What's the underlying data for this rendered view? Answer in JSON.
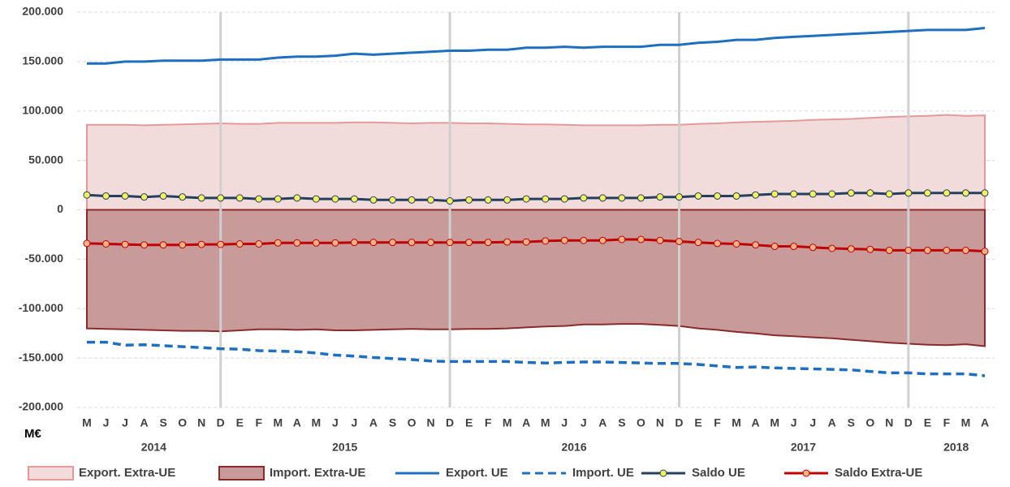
{
  "chart_data": {
    "type": "line",
    "unit_label": "M€",
    "categories": [
      "M",
      "J",
      "J",
      "A",
      "S",
      "O",
      "N",
      "D",
      "E",
      "F",
      "M",
      "A",
      "M",
      "J",
      "J",
      "A",
      "S",
      "O",
      "N",
      "D",
      "E",
      "F",
      "M",
      "A",
      "M",
      "J",
      "J",
      "A",
      "S",
      "O",
      "N",
      "D",
      "E",
      "F",
      "M",
      "A",
      "M",
      "J",
      "J",
      "A",
      "S",
      "O",
      "N",
      "D",
      "E",
      "F",
      "M",
      "A"
    ],
    "years": [
      "2014",
      "2015",
      "2016",
      "2017",
      "2018"
    ],
    "ylim": [
      -200000,
      200000
    ],
    "yticks": [
      {
        "value": -200000,
        "label": "-200.000"
      },
      {
        "value": -150000,
        "label": "-150.000"
      },
      {
        "value": -100000,
        "label": "-100.000"
      },
      {
        "value": -50000,
        "label": "-50.000"
      },
      0,
      {
        "value": 50000,
        "label": "50.000"
      },
      {
        "value": 100000,
        "label": "100.000"
      },
      {
        "value": 150000,
        "label": "150.000"
      },
      {
        "value": 200000,
        "label": "200.000"
      }
    ],
    "grid": true,
    "legend": "bottom",
    "series": [
      {
        "name": "Export. Extra-UE",
        "style": "area",
        "color": "#f2dcdb",
        "edge_color": "#e39a9a",
        "values": [
          86000,
          86000,
          86000,
          85500,
          86000,
          86500,
          87000,
          87500,
          87000,
          87000,
          88000,
          88000,
          88000,
          88000,
          88500,
          88500,
          88000,
          87500,
          88000,
          88000,
          87500,
          87500,
          87000,
          86500,
          86500,
          86000,
          85500,
          85500,
          85500,
          85500,
          86000,
          86000,
          87000,
          87500,
          88500,
          89000,
          89500,
          90000,
          91000,
          91500,
          92000,
          93000,
          94000,
          94500,
          95000,
          96000,
          95000,
          95500
        ]
      },
      {
        "name": "Import. Extra-UE",
        "style": "area",
        "color": "#c89a9a",
        "edge_color": "#8b2a2a",
        "values": [
          -120000,
          -120500,
          -121000,
          -121500,
          -122000,
          -122500,
          -122500,
          -123000,
          -122000,
          -121000,
          -121000,
          -121500,
          -121000,
          -122000,
          -122000,
          -121500,
          -121000,
          -120500,
          -121000,
          -121000,
          -120500,
          -120500,
          -120000,
          -119000,
          -118000,
          -117500,
          -116000,
          -116000,
          -115500,
          -115500,
          -116500,
          -117500,
          -120000,
          -121500,
          -123500,
          -125000,
          -127000,
          -128000,
          -129000,
          -130000,
          -131500,
          -133000,
          -134500,
          -135500,
          -136500,
          -137000,
          -136000,
          -138000
        ]
      },
      {
        "name": "Export. UE",
        "style": "line",
        "color": "#1f6fc0",
        "values": [
          148000,
          148000,
          150000,
          150000,
          151000,
          151000,
          151000,
          152000,
          152000,
          152000,
          154000,
          155000,
          155000,
          156000,
          158000,
          157000,
          158000,
          159000,
          160000,
          161000,
          161000,
          162000,
          162000,
          164000,
          164000,
          165000,
          164000,
          165000,
          165000,
          165000,
          167000,
          167000,
          169000,
          170000,
          172000,
          172000,
          174000,
          175000,
          176000,
          177000,
          178000,
          179000,
          180000,
          181000,
          182000,
          182000,
          182000,
          184000
        ]
      },
      {
        "name": "Import. UE",
        "style": "dashed",
        "color": "#1f6fc0",
        "values": [
          -134000,
          -134000,
          -137000,
          -136500,
          -137500,
          -138500,
          -139500,
          -140500,
          -141000,
          -142500,
          -143000,
          -143500,
          -145000,
          -147000,
          -148000,
          -149500,
          -150500,
          -151500,
          -153000,
          -153500,
          -153500,
          -153500,
          -153500,
          -154500,
          -155000,
          -154500,
          -154000,
          -154000,
          -154500,
          -155000,
          -155500,
          -155500,
          -156500,
          -158000,
          -159500,
          -159000,
          -160000,
          -160500,
          -161000,
          -161500,
          -162000,
          -163500,
          -165000,
          -165000,
          -166000,
          -166000,
          -166000,
          -168000
        ]
      },
      {
        "name": "Saldo UE",
        "style": "line-markers",
        "color": "#243f60",
        "marker_color": "#f2f25a",
        "values": [
          15000,
          14000,
          14000,
          13000,
          14000,
          13000,
          12000,
          12000,
          12000,
          11000,
          11000,
          12000,
          11000,
          11000,
          11000,
          10000,
          10000,
          10000,
          10000,
          9000,
          10000,
          10000,
          10000,
          11000,
          11000,
          11000,
          12000,
          12000,
          12000,
          12000,
          13000,
          13000,
          14000,
          14000,
          14000,
          15000,
          16000,
          16000,
          16000,
          16000,
          17000,
          17000,
          16000,
          17000,
          17000,
          17000,
          17000,
          17000
        ]
      },
      {
        "name": "Saldo Extra-UE",
        "style": "line-markers",
        "color": "#c00000",
        "marker_color": "#f4b183",
        "values": [
          -34000,
          -34500,
          -35000,
          -35500,
          -35500,
          -35500,
          -35000,
          -35000,
          -34500,
          -34500,
          -33500,
          -33500,
          -33500,
          -33500,
          -33000,
          -33000,
          -33000,
          -33000,
          -33000,
          -33000,
          -33000,
          -33000,
          -32500,
          -32500,
          -31500,
          -31000,
          -31000,
          -31000,
          -30000,
          -30000,
          -31000,
          -32000,
          -33000,
          -34000,
          -34500,
          -35500,
          -37000,
          -37000,
          -38000,
          -39000,
          -39500,
          -40000,
          -41000,
          -41000,
          -41000,
          -41000,
          -41000,
          -42000
        ]
      }
    ]
  }
}
